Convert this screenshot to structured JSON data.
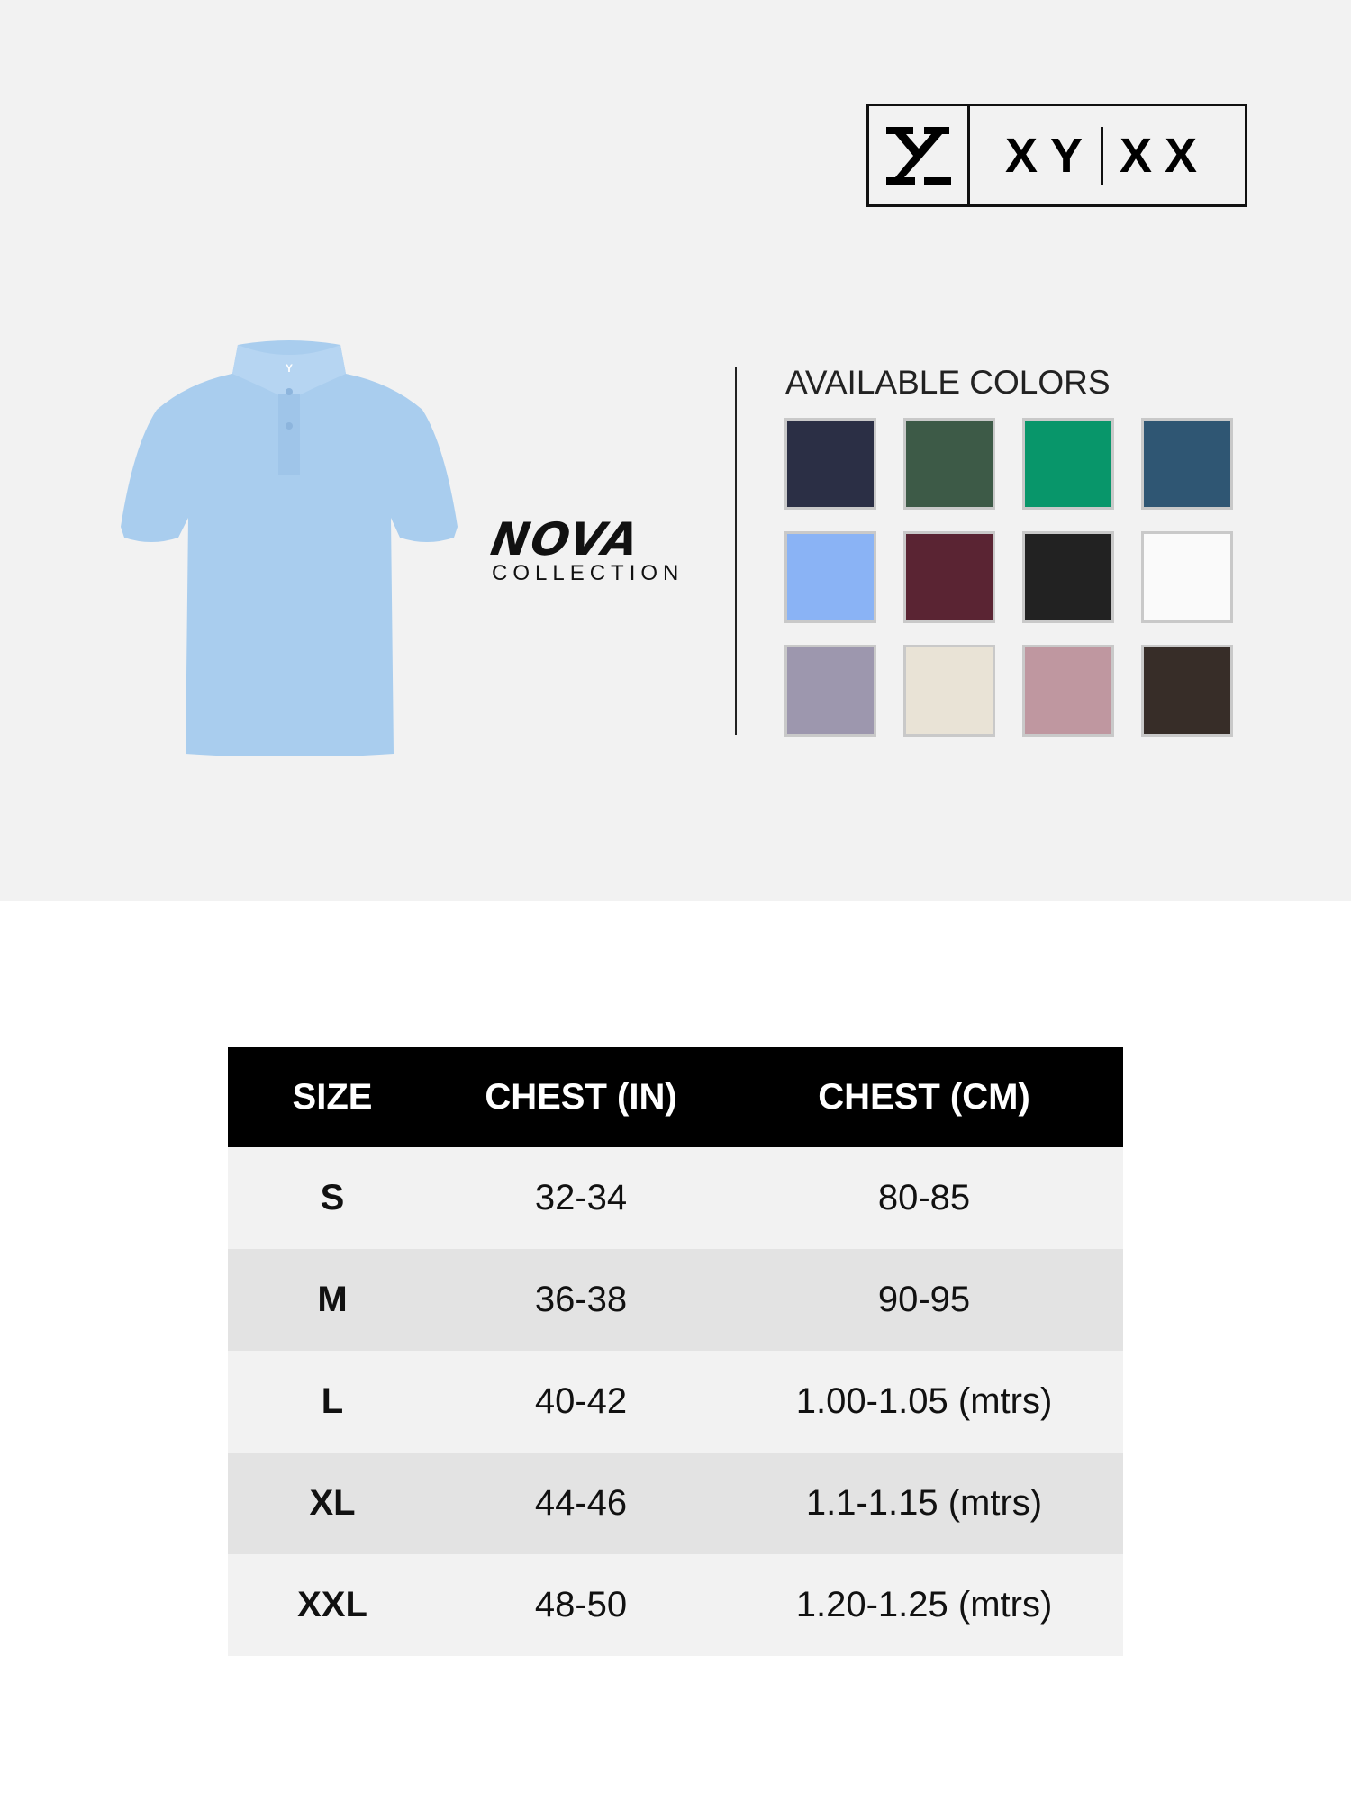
{
  "brand": {
    "logo_text_left": "XY",
    "logo_text_right": "XX",
    "mark": "Y"
  },
  "collection": {
    "name": "NOVA",
    "subtitle": "COLLECTION",
    "accent": "#f07f1e"
  },
  "product": {
    "color": "#a9cdee"
  },
  "colors": {
    "title": "AVAILABLE COLORS",
    "swatches": [
      "#2b2f45",
      "#3d5a47",
      "#08966a",
      "#2f5673",
      "#8ab3f5",
      "#5a2433",
      "#222222",
      "#fafafa",
      "#9d97ae",
      "#e9e3d6",
      "#bf97a0",
      "#372d28"
    ]
  },
  "size_table": {
    "headers": [
      "SIZE",
      "CHEST (IN)",
      "CHEST (CM)"
    ],
    "rows": [
      [
        "S",
        "32-34",
        "80-85"
      ],
      [
        "M",
        "36-38",
        "90-95"
      ],
      [
        "L",
        "40-42",
        "1.00-1.05 (mtrs)"
      ],
      [
        "XL",
        "44-46",
        "1.1-1.15 (mtrs)"
      ],
      [
        "XXL",
        "48-50",
        "1.20-1.25 (mtrs)"
      ]
    ]
  }
}
